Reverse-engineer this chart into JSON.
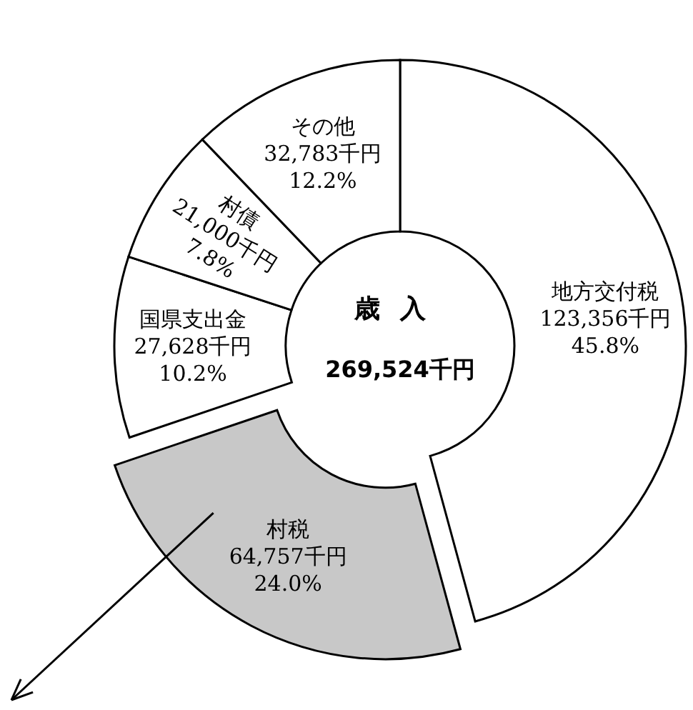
{
  "chart_data": {
    "type": "donut",
    "title": "歳入",
    "annotations": [
      "269,524千円"
    ],
    "categories": [
      "地方交付税",
      "村税",
      "国県支出金",
      "村債",
      "その他"
    ],
    "values": [
      123356,
      64757,
      27628,
      21000,
      32783
    ],
    "value_labels": [
      "123,356千円\n45.8%",
      "64,757千円\n24.0%",
      "27,628千円\n10.2%",
      "21,000千円\n7.8%",
      "32,783千円\n12.2%"
    ],
    "colors": [
      "#ffffff",
      "#c8c8c8",
      "#ffffff",
      "#ffffff",
      "#ffffff"
    ]
  }
}
